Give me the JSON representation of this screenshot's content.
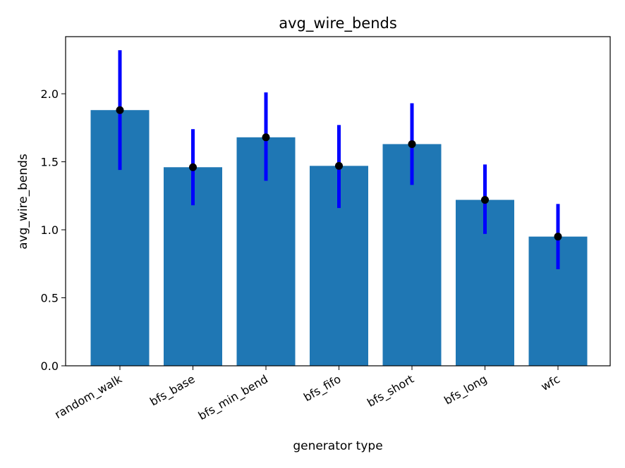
{
  "chart_data": {
    "type": "bar",
    "title": "avg_wire_bends",
    "xlabel": "generator type",
    "ylabel": "avg_wire_bends",
    "categories": [
      "random_walk",
      "bfs_base",
      "bfs_min_bend",
      "bfs_fifo",
      "bfs_short",
      "bfs_long",
      "wfc"
    ],
    "values": [
      1.88,
      1.46,
      1.68,
      1.47,
      1.63,
      1.22,
      0.95
    ],
    "error_low": [
      1.44,
      1.18,
      1.36,
      1.16,
      1.33,
      0.97,
      0.71
    ],
    "error_high": [
      2.32,
      1.74,
      2.01,
      1.77,
      1.93,
      1.48,
      1.19
    ],
    "ylim": [
      0,
      2.42
    ],
    "yticks": [
      0.0,
      0.5,
      1.0,
      1.5,
      2.0
    ],
    "ytick_labels": [
      "0.0",
      "0.5",
      "1.0",
      "1.5",
      "2.0"
    ],
    "grid": false,
    "colors": {
      "bar": "#1f77b4",
      "errorbar": "#0000ff",
      "point": "#000000"
    }
  }
}
